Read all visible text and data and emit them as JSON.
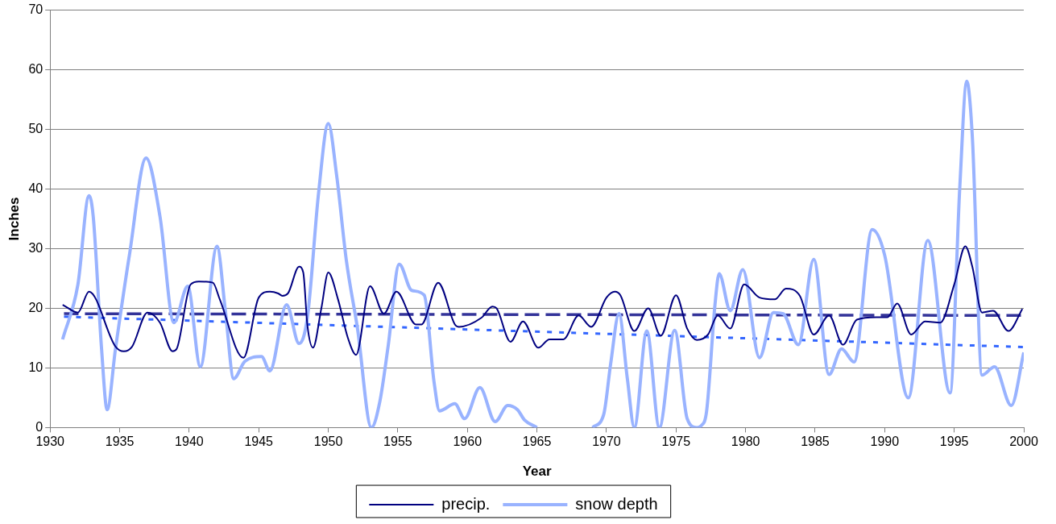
{
  "chart_data": {
    "type": "line",
    "xlabel": "Year",
    "ylabel": "Inches",
    "xlim": [
      1930,
      2000
    ],
    "xticks": [
      1930,
      1935,
      1940,
      1945,
      1950,
      1955,
      1960,
      1965,
      1970,
      1975,
      1980,
      1985,
      1990,
      1995,
      2000
    ],
    "ylim": [
      0,
      70
    ],
    "yticks": [
      0,
      10,
      20,
      30,
      40,
      50,
      60,
      70
    ],
    "grid": "y",
    "legend": "bottom",
    "marker": "none",
    "series": [
      {
        "name": "precip.",
        "color": "#000080",
        "x": [
          1930.9,
          1932.0,
          1932.8,
          1934.7,
          1935.3,
          1935.9,
          1937.0,
          1937.9,
          1938.8,
          1939.1,
          1940.1,
          1940.7,
          1941.7,
          1942.2,
          1943.9,
          1945.0,
          1945.8,
          1946.4,
          1946.7,
          1947.1,
          1947.9,
          1948.2,
          1948.5,
          1948.9,
          1949.5,
          1950.0,
          1950.7,
          1951.4,
          1952.0,
          1953.0,
          1954.0,
          1954.9,
          1956.3,
          1956.7,
          1957.9,
          1959.1,
          1959.4,
          1961.0,
          1961.8,
          1962.1,
          1963.1,
          1964.0,
          1965.1,
          1965.9,
          1966.9,
          1968.0,
          1968.9,
          1970.0,
          1970.6,
          1971.0,
          1972.0,
          1973.0,
          1973.9,
          1975.0,
          1975.8,
          1976.5,
          1977.3,
          1978.0,
          1978.9,
          1979.9,
          1981.0,
          1982.1,
          1982.9,
          1983.9,
          1984.9,
          1986.0,
          1987.0,
          1988.0,
          1989.4,
          1990.2,
          1990.9,
          1991.9,
          1992.9,
          1994.0,
          1995.0,
          1995.8,
          1996.3,
          1997.0,
          1997.8,
          1998.9,
          1999.9
        ],
        "values": [
          20.6,
          19.3,
          22.8,
          13.6,
          12.8,
          13.6,
          19.3,
          17.6,
          12.8,
          13.2,
          24.0,
          24.5,
          24.3,
          21.5,
          11.7,
          21.8,
          22.8,
          22.5,
          22.1,
          22.5,
          27.0,
          26.0,
          17.1,
          13.4,
          20.0,
          26.0,
          21.5,
          15.1,
          12.2,
          23.7,
          19.1,
          22.8,
          17.3,
          17.3,
          24.3,
          17.3,
          16.9,
          18.4,
          20.3,
          20.0,
          14.4,
          17.8,
          13.4,
          14.8,
          14.8,
          18.8,
          16.9,
          21.8,
          22.8,
          22.2,
          16.2,
          20.0,
          15.4,
          22.2,
          16.6,
          14.7,
          15.6,
          18.8,
          16.6,
          24.0,
          21.8,
          21.5,
          23.3,
          22.1,
          15.6,
          18.8,
          13.9,
          18.1,
          18.5,
          18.5,
          20.8,
          15.6,
          17.8,
          17.6,
          24.0,
          30.4,
          27.0,
          19.3,
          19.6,
          16.2,
          19.9
        ]
      },
      {
        "name": "snow depth",
        "color": "#99b3ff",
        "x": [
          1930.9,
          1932.0,
          1932.8,
          1933.1,
          1933.7,
          1934.1,
          1934.7,
          1935.7,
          1936.9,
          1937.9,
          1938.9,
          1939.9,
          1940.8,
          1942.0,
          1942.6,
          1943.2,
          1944.0,
          1945.2,
          1945.8,
          1947.0,
          1947.9,
          1948.5,
          1949.3,
          1950.0,
          1950.6,
          1951.3,
          1952.1,
          1953.1,
          1953.7,
          1954.3,
          1955.1,
          1956.0,
          1956.9,
          1957.6,
          1958.0,
          1959.1,
          1959.8,
          1960.9,
          1962.0,
          1962.9,
          1963.6,
          1964.1,
          1965.0,
          1967.0,
          1969.0,
          1969.8,
          1970.3,
          1970.9,
          1971.5,
          1972.0,
          1972.9,
          1973.8,
          1974.9,
          1975.8,
          1976.5,
          1976.8,
          1977.2,
          1977.8,
          1978.1,
          1978.9,
          1979.8,
          1981.0,
          1982.0,
          1982.7,
          1983.8,
          1984.9,
          1986.0,
          1986.9,
          1987.8,
          1989.1,
          1990.0,
          1991.7,
          1993.1,
          1994.7,
          1995.4,
          1995.9,
          1996.3,
          1997.0,
          1997.9,
          1999.1,
          2000.0
        ],
        "values": [
          14.8,
          24.0,
          38.9,
          35.4,
          13.2,
          3.0,
          13.2,
          28.9,
          45.2,
          35.4,
          17.6,
          23.7,
          10.2,
          30.4,
          19.6,
          8.2,
          11.1,
          11.9,
          9.5,
          20.6,
          14.1,
          18.5,
          39.3,
          51.0,
          42.3,
          28.0,
          16.6,
          0,
          4.3,
          13.6,
          27.4,
          23.0,
          22.2,
          7.7,
          2.8,
          4.0,
          1.5,
          6.7,
          1.0,
          3.7,
          3.0,
          1.3,
          0,
          null,
          0,
          2.2,
          10.7,
          19.1,
          8.2,
          0,
          16.2,
          0,
          16.3,
          1.5,
          0,
          0.3,
          2.8,
          20.6,
          25.8,
          19.6,
          26.5,
          11.7,
          19.3,
          19.1,
          13.9,
          28.2,
          8.9,
          13.2,
          11.0,
          33.2,
          28.9,
          5.0,
          31.4,
          5.8,
          40.3,
          58.1,
          48.8,
          8.8,
          10.2,
          3.7,
          12.6
        ]
      },
      {
        "type": "line",
        "color": "#333399",
        "line_style": "dashed",
        "x": [
          1931,
          2000
        ],
        "values": [
          19.1,
          18.8
        ]
      },
      {
        "type": "line",
        "color": "#3366ff",
        "line_style": "dotted",
        "x": [
          1931,
          2000
        ],
        "values": [
          18.6,
          13.5
        ]
      }
    ]
  }
}
